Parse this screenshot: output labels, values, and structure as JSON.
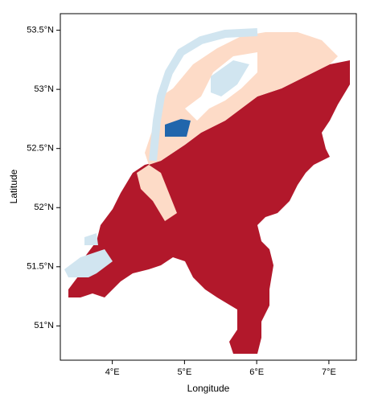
{
  "chart_data": {
    "type": "map",
    "xlabel": "Longitude",
    "ylabel": "Latitude",
    "xlim": [
      3.28,
      7.38
    ],
    "ylim": [
      50.71,
      53.64
    ],
    "xticks": [
      {
        "value": 4,
        "label": "4°E"
      },
      {
        "value": 5,
        "label": "5°E"
      },
      {
        "value": 6,
        "label": "6°E"
      },
      {
        "value": 7,
        "label": "7°E"
      }
    ],
    "yticks": [
      {
        "value": 51,
        "label": "51°N"
      },
      {
        "value": 51.5,
        "label": "51.5°N"
      },
      {
        "value": 52,
        "label": "52°N"
      },
      {
        "value": 52.5,
        "label": "52.5°N"
      },
      {
        "value": 53,
        "label": "53°N"
      },
      {
        "value": 53.5,
        "label": "53.5°N"
      }
    ]
  }
}
